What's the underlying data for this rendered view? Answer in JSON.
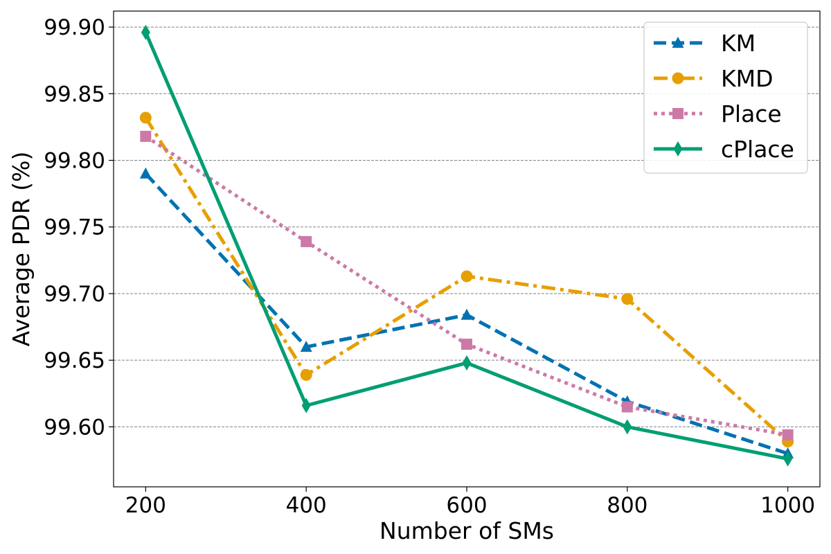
{
  "chart_data": {
    "type": "line",
    "title": "",
    "xlabel": "Number of SMs",
    "ylabel": "Average PDR (%)",
    "x": [
      200,
      400,
      600,
      800,
      1000
    ],
    "x_tick_labels": [
      "200",
      "400",
      "600",
      "800",
      "1000"
    ],
    "xlim": [
      160,
      1040
    ],
    "ylim": [
      99.555,
      99.912
    ],
    "y_ticks": [
      99.6,
      99.65,
      99.7,
      99.75,
      99.8,
      99.85,
      99.9
    ],
    "y_tick_labels": [
      "99.60",
      "99.65",
      "99.70",
      "99.75",
      "99.80",
      "99.85",
      "99.90"
    ],
    "grid": "horizontal dashed",
    "legend_position": "top-right",
    "series": [
      {
        "name": "KM",
        "values": [
          99.79,
          99.66,
          99.684,
          99.619,
          99.58
        ],
        "color": "#0072b2",
        "dash": "dashed",
        "marker": "triangle"
      },
      {
        "name": "KMD",
        "values": [
          99.832,
          99.639,
          99.713,
          99.696,
          99.589
        ],
        "color": "#e69f00",
        "dash": "dashdot",
        "marker": "circle"
      },
      {
        "name": "Place",
        "values": [
          99.818,
          99.739,
          99.662,
          99.615,
          99.594
        ],
        "color": "#cc79a7",
        "dash": "dotted",
        "marker": "square"
      },
      {
        "name": "cPlace",
        "values": [
          99.896,
          99.616,
          99.648,
          99.6,
          99.576
        ],
        "color": "#009e73",
        "dash": "solid",
        "marker": "diamond"
      }
    ]
  }
}
